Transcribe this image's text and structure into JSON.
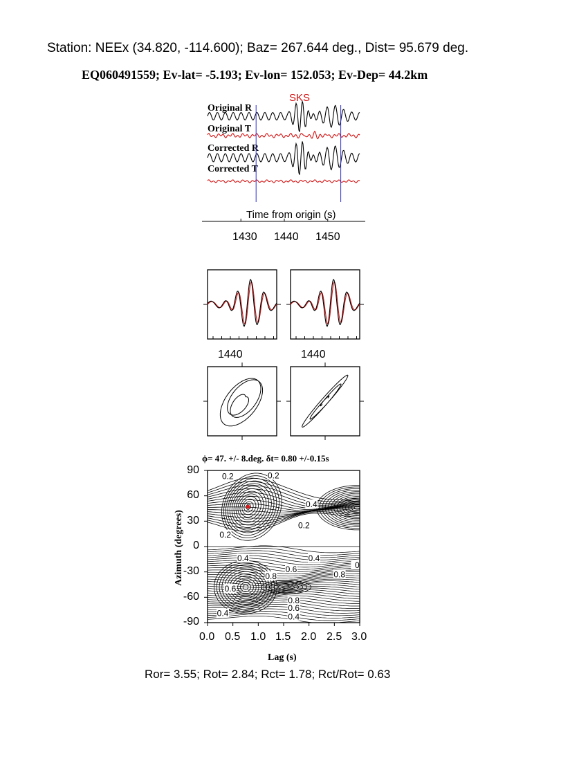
{
  "header": {
    "station_line": "Station: NEEx (34.820, -114.600); Baz=  267.644 deg., Dist=   95.679 deg.",
    "event_line": "EQ060491559; Ev-lat=  -5.193; Ev-lon= 152.053; Ev-Dep= 44.2km"
  },
  "chart_data": [
    {
      "type": "line",
      "panel": "seismograms",
      "phase_label": "SKS",
      "xlabel": "Time from origin (s)",
      "x_ticks": [
        1430,
        1440,
        1450
      ],
      "xlim": [
        1422,
        1458
      ],
      "window_lines": [
        1433.5,
        1453.0
      ],
      "colors": {
        "radial": "#000000",
        "transverse": "#d41111",
        "window": "#2a2ad6",
        "phase": "#d41111"
      },
      "series": [
        {
          "name": "Original R"
        },
        {
          "name": "Original T"
        },
        {
          "name": "Corrected R"
        },
        {
          "name": "Corrected T"
        }
      ]
    },
    {
      "type": "line",
      "panel": "waveform-overlay",
      "x_ticks": [
        1440
      ],
      "subplots": 2
    },
    {
      "type": "line",
      "panel": "particle-motion",
      "subplots": 2
    },
    {
      "type": "heatmap",
      "panel": "grid-search",
      "title": "ϕ= 47. +/- 8.deg.  δt= 0.80 +/-0.15s",
      "xlabel": "Lag (s)",
      "ylabel": "Azimuth (degrees)",
      "xlim": [
        0.0,
        3.0
      ],
      "ylim": [
        -90,
        90
      ],
      "x_ticks": [
        "0.0",
        "0.5",
        "1.0",
        "1.5",
        "2.0",
        "2.5",
        "3.0"
      ],
      "y_ticks": [
        "90",
        "60",
        "30",
        "0",
        "-30",
        "-60",
        "-90"
      ],
      "best_fit": {
        "lag": 0.8,
        "azimuth": 47
      },
      "contour_labels": [
        {
          "text": "0.2",
          "lag": 0.4,
          "azimuth": 83
        },
        {
          "text": "0.2",
          "lag": 1.3,
          "azimuth": 84
        },
        {
          "text": "0.4",
          "lag": 2.05,
          "azimuth": 50
        },
        {
          "text": "0.2",
          "lag": 1.9,
          "azimuth": 25
        },
        {
          "text": "0.2",
          "lag": 0.35,
          "azimuth": 14
        },
        {
          "text": "0.4",
          "lag": 0.7,
          "azimuth": -14
        },
        {
          "text": "0.4",
          "lag": 2.1,
          "azimuth": -14
        },
        {
          "text": "0.6",
          "lag": 1.65,
          "azimuth": -27
        },
        {
          "text": "0.8",
          "lag": 1.25,
          "azimuth": -35
        },
        {
          "text": "0.8",
          "lag": 2.6,
          "azimuth": -33
        },
        {
          "text": "0",
          "lag": 2.95,
          "azimuth": -22
        },
        {
          "text": "0.6",
          "lag": 0.45,
          "azimuth": -50
        },
        {
          "text": "0.8",
          "lag": 1.7,
          "azimuth": -64
        },
        {
          "text": "0.6",
          "lag": 1.7,
          "azimuth": -73
        },
        {
          "text": "0.4",
          "lag": 1.7,
          "azimuth": -83
        },
        {
          "text": "0.4",
          "lag": 0.3,
          "azimuth": -79
        }
      ],
      "colors": {
        "contour": "#000000",
        "best_fit": "#e01818"
      }
    }
  ],
  "footer": {
    "ratios_line": "Ror= 3.55; Rot= 2.84; Rct= 1.78; Rct/Rot= 0.63"
  }
}
